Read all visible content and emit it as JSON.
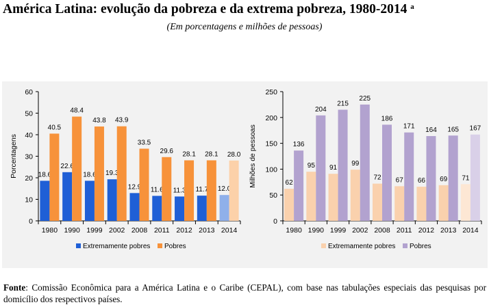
{
  "page": {
    "title": "América Latina: evolução da pobreza e da extrema pobreza, 1980-2014",
    "title_superscript": "a",
    "subtitle": "(Em porcentagens e milhões de pessoas)",
    "footnote_label": "Fonte",
    "footnote_text": ": Comissão Econômica para a América Latina e o Caribe (CEPAL), com base nas tabulações especiais das pesquisas por domicílio dos respectivos países."
  },
  "chart_data": [
    {
      "type": "bar",
      "categories": [
        "1980",
        "1990",
        "1999",
        "2002",
        "2008",
        "2011",
        "2012",
        "2013",
        "2014"
      ],
      "series": [
        {
          "name": "Extremamente pobres",
          "values": [
            18.6,
            22.6,
            18.6,
            19.3,
            12.9,
            11.6,
            11.3,
            11.7,
            12.0
          ],
          "color": "#1f5fd6",
          "projected_color": "#8fb0ea",
          "labels": [
            "18.6",
            "22.6",
            "18.6",
            "19.3",
            "12.9",
            "11.6",
            "11.3",
            "11.7",
            "12.0"
          ]
        },
        {
          "name": "Pobres",
          "values": [
            40.5,
            48.4,
            43.8,
            43.9,
            33.5,
            29.6,
            28.1,
            28.1,
            28.0
          ],
          "color": "#f7923a",
          "projected_color": "#fcd1a9",
          "labels": [
            "40.5",
            "48.4",
            "43.8",
            "43.9",
            "33.5",
            "29.6",
            "28.1",
            "28.1",
            "28.0"
          ]
        }
      ],
      "projected_index": 8,
      "xlabel": "",
      "ylabel": "Porcentagens",
      "ylim": [
        0,
        60
      ],
      "yticks": [
        0,
        10,
        20,
        30,
        40,
        50,
        60
      ],
      "ytick_labels": [
        "0",
        "10",
        "20",
        "30",
        "40",
        "50",
        "60"
      ],
      "grid": false,
      "legend": "bottom"
    },
    {
      "type": "bar",
      "categories": [
        "1980",
        "1990",
        "1999",
        "2002",
        "2008",
        "2011",
        "2012",
        "2013",
        "2014"
      ],
      "series": [
        {
          "name": "Extremamente pobres",
          "values": [
            62,
            95,
            91,
            99,
            72,
            67,
            66,
            69,
            71
          ],
          "color": "#fad1ad",
          "projected_color": "#fde7d4",
          "labels": [
            "62",
            "95",
            "91",
            "99",
            "72",
            "67",
            "66",
            "69",
            "71"
          ]
        },
        {
          "name": "Pobres",
          "values": [
            136,
            204,
            215,
            225,
            186,
            171,
            164,
            165,
            167
          ],
          "color": "#b2a2cf",
          "projected_color": "#d9d0e8",
          "labels": [
            "136",
            "204",
            "215",
            "225",
            "186",
            "171",
            "164",
            "165",
            "167"
          ]
        }
      ],
      "projected_index": 8,
      "xlabel": "",
      "ylabel": "Milhões de pessoas",
      "ylim": [
        0,
        250
      ],
      "yticks": [
        0,
        50,
        100,
        150,
        200,
        250
      ],
      "ytick_labels": [
        "0",
        "50",
        "100",
        "150",
        "200",
        "250"
      ],
      "grid": false,
      "legend": "bottom"
    }
  ]
}
